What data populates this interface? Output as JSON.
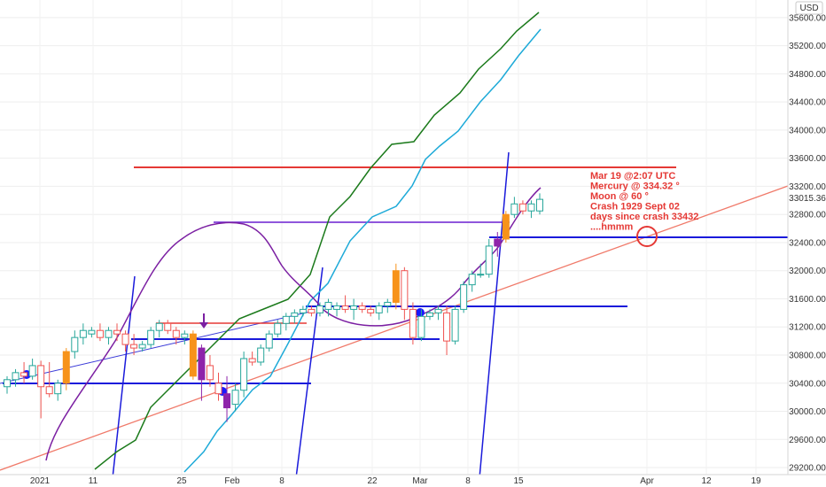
{
  "chart_data": {
    "type": "candlestick",
    "currency_label": "USD",
    "price_tag": "33015.36",
    "y_ticks": [
      "35600.00",
      "35200.00",
      "34800.00",
      "34400.00",
      "34000.00",
      "33600.00",
      "33200.00",
      "32800.00",
      "32400.00",
      "32000.00",
      "31600.00",
      "31200.00",
      "30800.00",
      "30400.00",
      "30000.00",
      "29600.00",
      "29200.00"
    ],
    "x_ticks": [
      "2021",
      "11",
      "25",
      "Feb",
      "8",
      "22",
      "Mar",
      "8",
      "15",
      "Apr",
      "12",
      "19"
    ],
    "ylim": [
      29100,
      35850
    ],
    "annotation": [
      "Mar 19 @2:07 UTC",
      "Mercury @ 334.32 °",
      "Moon @ 60 °",
      "Crash 1929 Sept 02",
      "days since crash 33432",
      "....hmmm"
    ],
    "candles": [
      {
        "o": 30350,
        "h": 30500,
        "l": 30250,
        "c": 30450
      },
      {
        "o": 30450,
        "h": 30600,
        "l": 30350,
        "c": 30550
      },
      {
        "o": 30550,
        "h": 30700,
        "l": 30400,
        "c": 30500
      },
      {
        "o": 30500,
        "h": 30750,
        "l": 30450,
        "c": 30650
      },
      {
        "o": 30650,
        "h": 30720,
        "l": 29900,
        "c": 30350
      },
      {
        "o": 30350,
        "h": 30700,
        "l": 30200,
        "c": 30250
      },
      {
        "o": 30250,
        "h": 30450,
        "l": 30150,
        "c": 30400
      },
      {
        "o": 30400,
        "h": 30900,
        "l": 30300,
        "c": 30850
      },
      {
        "o": 30850,
        "h": 31150,
        "l": 30750,
        "c": 31050
      },
      {
        "o": 31050,
        "h": 31250,
        "l": 30950,
        "c": 31150
      },
      {
        "o": 31100,
        "h": 31200,
        "l": 31050,
        "c": 31150
      },
      {
        "o": 31150,
        "h": 31250,
        "l": 31000,
        "c": 31050
      },
      {
        "o": 31050,
        "h": 31200,
        "l": 30950,
        "c": 31150
      },
      {
        "o": 31150,
        "h": 31250,
        "l": 31000,
        "c": 31100
      },
      {
        "o": 31100,
        "h": 31150,
        "l": 30850,
        "c": 30950
      },
      {
        "o": 30950,
        "h": 31100,
        "l": 30800,
        "c": 30900
      },
      {
        "o": 30900,
        "h": 31000,
        "l": 30850,
        "c": 30950
      },
      {
        "o": 30950,
        "h": 31200,
        "l": 30900,
        "c": 31150
      },
      {
        "o": 31150,
        "h": 31300,
        "l": 31050,
        "c": 31250
      },
      {
        "o": 31250,
        "h": 31300,
        "l": 31100,
        "c": 31150
      },
      {
        "o": 31150,
        "h": 31200,
        "l": 30950,
        "c": 31050
      },
      {
        "o": 31050,
        "h": 31150,
        "l": 30950,
        "c": 31100
      },
      {
        "o": 31100,
        "h": 31150,
        "l": 30450,
        "c": 30500
      },
      {
        "o": 30450,
        "h": 30950,
        "l": 30150,
        "c": 30900
      },
      {
        "o": 30650,
        "h": 30800,
        "l": 30350,
        "c": 30450
      },
      {
        "o": 30400,
        "h": 30550,
        "l": 30150,
        "c": 30250
      },
      {
        "o": 30250,
        "h": 30500,
        "l": 29850,
        "c": 30050
      },
      {
        "o": 30100,
        "h": 30400,
        "l": 30000,
        "c": 30300
      },
      {
        "o": 30300,
        "h": 30850,
        "l": 30200,
        "c": 30750
      },
      {
        "o": 30750,
        "h": 30850,
        "l": 30650,
        "c": 30700
      },
      {
        "o": 30700,
        "h": 30950,
        "l": 30650,
        "c": 30900
      },
      {
        "o": 30900,
        "h": 31150,
        "l": 30850,
        "c": 31100
      },
      {
        "o": 31100,
        "h": 31300,
        "l": 31050,
        "c": 31250
      },
      {
        "o": 31250,
        "h": 31400,
        "l": 31150,
        "c": 31350
      },
      {
        "o": 31350,
        "h": 31450,
        "l": 31250,
        "c": 31400
      },
      {
        "o": 31400,
        "h": 31500,
        "l": 31350,
        "c": 31450
      },
      {
        "o": 31450,
        "h": 31500,
        "l": 31350,
        "c": 31400
      },
      {
        "o": 31400,
        "h": 31550,
        "l": 31350,
        "c": 31500
      },
      {
        "o": 31450,
        "h": 31600,
        "l": 31350,
        "c": 31550
      },
      {
        "o": 31450,
        "h": 31550,
        "l": 31350,
        "c": 31500
      },
      {
        "o": 31500,
        "h": 31650,
        "l": 31400,
        "c": 31450
      },
      {
        "o": 31450,
        "h": 31600,
        "l": 31300,
        "c": 31500
      },
      {
        "o": 31500,
        "h": 31550,
        "l": 31400,
        "c": 31450
      },
      {
        "o": 31450,
        "h": 31500,
        "l": 31350,
        "c": 31400
      },
      {
        "o": 31400,
        "h": 31550,
        "l": 31300,
        "c": 31500
      },
      {
        "o": 31500,
        "h": 31600,
        "l": 31400,
        "c": 31550
      },
      {
        "o": 31550,
        "h": 32100,
        "l": 31450,
        "c": 32000
      },
      {
        "o": 32000,
        "h": 32050,
        "l": 31300,
        "c": 31450
      },
      {
        "o": 31450,
        "h": 31550,
        "l": 30950,
        "c": 31050
      },
      {
        "o": 31050,
        "h": 31450,
        "l": 31000,
        "c": 31350
      },
      {
        "o": 31350,
        "h": 31450,
        "l": 31300,
        "c": 31400
      },
      {
        "o": 31400,
        "h": 31500,
        "l": 31300,
        "c": 31450
      },
      {
        "o": 31400,
        "h": 31500,
        "l": 30800,
        "c": 31000
      },
      {
        "o": 31000,
        "h": 31500,
        "l": 30950,
        "c": 31450
      },
      {
        "o": 31450,
        "h": 31850,
        "l": 31400,
        "c": 31800
      },
      {
        "o": 31800,
        "h": 32000,
        "l": 31700,
        "c": 31950
      },
      {
        "o": 31950,
        "h": 32100,
        "l": 31900,
        "c": 31950
      },
      {
        "o": 31950,
        "h": 32450,
        "l": 31900,
        "c": 32350
      },
      {
        "o": 32350,
        "h": 32550,
        "l": 32200,
        "c": 32450
      },
      {
        "o": 32450,
        "h": 32850,
        "l": 32400,
        "c": 32800
      },
      {
        "o": 32800,
        "h": 33050,
        "l": 32750,
        "c": 32950
      },
      {
        "o": 32950,
        "h": 33000,
        "l": 32800,
        "c": 32850
      },
      {
        "o": 32850,
        "h": 33000,
        "l": 32750,
        "c": 32950
      },
      {
        "o": 32850,
        "h": 33100,
        "l": 32800,
        "c": 33015
      }
    ]
  },
  "colors": {
    "up_fill": "#ffffff",
    "up_stroke": "#26a69a",
    "down_fill": "#ffffff",
    "down_stroke": "#ef5350",
    "highlight_orange": "#f7931a",
    "highlight_purple": "#8e24aa",
    "blue": "#1a1adb",
    "red": "#e53935",
    "purple": "#7b1fa2",
    "green": "#1b7a1b",
    "cyan": "#1eaad8",
    "salmon": "#f07a6a",
    "annotation": "#e53935"
  }
}
